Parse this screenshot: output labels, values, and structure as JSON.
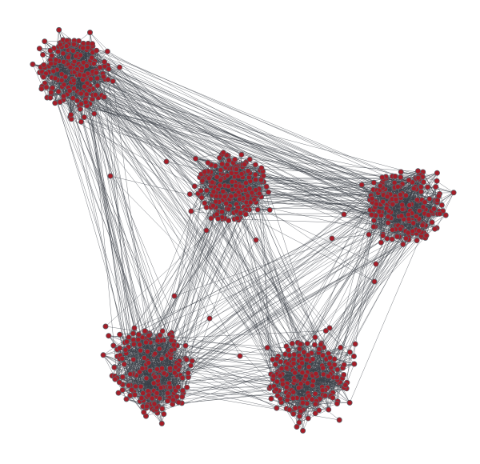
{
  "graph": {
    "type": "network",
    "node_color": "#a51d27",
    "node_stroke": "#5b5f66",
    "edge_color": "#3b4047",
    "background": "#ffffff",
    "communities": [
      {
        "name": "",
        "approx_nodes": 200
      },
      {
        "name": "",
        "approx_nodes": 200
      },
      {
        "name": "",
        "approx_nodes": 200
      },
      {
        "name": "",
        "approx_nodes": 200
      },
      {
        "name": "",
        "approx_nodes": 200
      }
    ],
    "total_nodes_approx": 1000
  }
}
